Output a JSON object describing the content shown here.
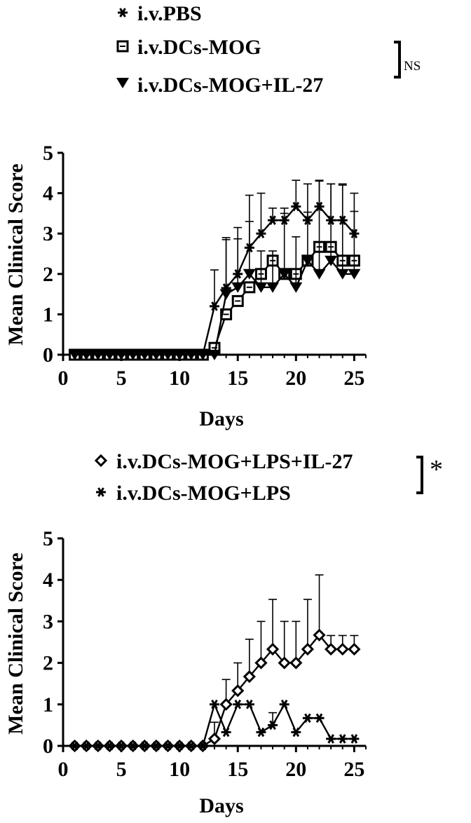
{
  "chart_data": [
    {
      "type": "line",
      "title": "",
      "xlabel": "Days",
      "ylabel": "Mean Clinical Score",
      "xlim": [
        0,
        26
      ],
      "ylim": [
        0,
        5
      ],
      "xticks": [
        "0",
        "5",
        "10",
        "15",
        "20",
        "25"
      ],
      "yticks": [
        "0",
        "1",
        "2",
        "3",
        "4",
        "5"
      ],
      "grid": false,
      "legend_position": "top-left",
      "significance": "NS",
      "x": [
        1,
        2,
        3,
        4,
        5,
        6,
        7,
        8,
        9,
        10,
        11,
        12,
        13,
        14,
        15,
        16,
        17,
        18,
        19,
        20,
        21,
        22,
        23,
        24,
        25
      ],
      "series": [
        {
          "name": "i.v.PBS",
          "marker": "asterisk",
          "values": [
            0,
            0,
            0,
            0,
            0,
            0,
            0,
            0,
            0,
            0,
            0,
            0,
            1.2,
            1.65,
            2.0,
            2.65,
            3.0,
            3.33,
            3.33,
            3.67,
            3.33,
            3.67,
            3.33,
            3.33,
            3.0
          ],
          "error": [
            0,
            0,
            0,
            0,
            0,
            0,
            0,
            0,
            0,
            0,
            0,
            0,
            0.9,
            1.2,
            1.15,
            1.3,
            1.0,
            0.3,
            0.3,
            0.65,
            0.9,
            0.65,
            0.9,
            0.9,
            1.0
          ]
        },
        {
          "name": "i.v.DCs-MOG",
          "marker": "square",
          "values": [
            0,
            0,
            0,
            0,
            0,
            0,
            0,
            0,
            0,
            0,
            0,
            0,
            0.17,
            1.0,
            1.33,
            1.67,
            2.0,
            2.33,
            2.0,
            2.0,
            2.33,
            2.67,
            2.67,
            2.33,
            2.33
          ],
          "error": [
            0,
            0,
            0,
            0,
            0,
            0,
            0,
            0,
            0,
            0,
            0,
            0,
            0,
            0,
            0,
            0,
            0,
            0,
            0,
            0,
            0,
            0,
            0,
            0,
            0
          ]
        },
        {
          "name": "i.v.DCs-MOG+IL-27",
          "marker": "triangle-down",
          "values": [
            0,
            0,
            0,
            0,
            0,
            0,
            0,
            0,
            0,
            0,
            0,
            0,
            0,
            1.5,
            1.67,
            2.0,
            1.67,
            1.67,
            2.0,
            1.67,
            2.33,
            2.0,
            2.33,
            2.0,
            2.0
          ],
          "error": [
            0,
            0,
            0,
            0,
            0,
            0,
            0,
            0,
            0,
            0,
            0,
            0,
            0,
            1.4,
            1.2,
            1.3,
            0.9,
            0.9,
            1.5,
            1.25,
            1.2,
            2.3,
            1.9,
            2.2,
            1.55
          ]
        }
      ]
    },
    {
      "type": "line",
      "title": "",
      "xlabel": "Days",
      "ylabel": "Mean Clinical Score",
      "xlim": [
        0,
        26
      ],
      "ylim": [
        0,
        5
      ],
      "xticks": [
        "0",
        "5",
        "10",
        "15",
        "20",
        "25"
      ],
      "yticks": [
        "0",
        "1",
        "2",
        "3",
        "4",
        "5"
      ],
      "grid": false,
      "legend_position": "top-right",
      "significance": "*",
      "x": [
        1,
        2,
        3,
        4,
        5,
        6,
        7,
        8,
        9,
        10,
        11,
        12,
        13,
        14,
        15,
        16,
        17,
        18,
        19,
        20,
        21,
        22,
        23,
        24,
        25
      ],
      "series": [
        {
          "name": "i.v.DCs-MOG+LPS+IL-27",
          "marker": "diamond",
          "values": [
            0,
            0,
            0,
            0,
            0,
            0,
            0,
            0,
            0,
            0,
            0,
            0,
            0.17,
            1.0,
            1.33,
            1.67,
            2.0,
            2.33,
            2.0,
            2.0,
            2.33,
            2.67,
            2.33,
            2.33,
            2.33
          ],
          "error": [
            0,
            0,
            0,
            0,
            0,
            0,
            0,
            0,
            0,
            0,
            0,
            0,
            0.4,
            0.6,
            0.67,
            0.9,
            1.0,
            1.2,
            1.0,
            1.0,
            1.2,
            1.45,
            0.33,
            0.33,
            0.33
          ]
        },
        {
          "name": "i.v.DCs-MOG+LPS",
          "marker": "asterisk",
          "values": [
            0,
            0,
            0,
            0,
            0,
            0,
            0,
            0,
            0,
            0,
            0,
            0,
            1.0,
            0.33,
            1.0,
            1.0,
            0.33,
            0.5,
            1.0,
            0.33,
            0.67,
            0.67,
            0.17,
            0.17,
            0.17
          ],
          "error": [
            0,
            0,
            0,
            0,
            0,
            0,
            0,
            0,
            0,
            0,
            0,
            0,
            0,
            0,
            0,
            0,
            0,
            0.3,
            0,
            0,
            0,
            0,
            0,
            0,
            0
          ]
        }
      ]
    }
  ]
}
